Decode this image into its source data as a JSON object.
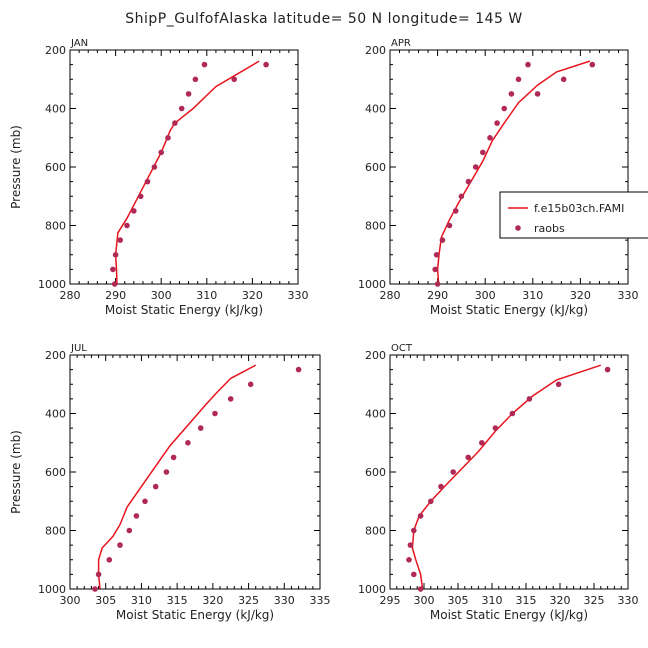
{
  "title": "ShipP_GulfofAlaska  latitude= 50 N longitude= 145 W",
  "colors": {
    "model": "#e8141e",
    "obs": "#b02a55",
    "axis": "#000000"
  },
  "legend": {
    "model": "f.e15b03ch.FAMI",
    "obs": "raobs"
  },
  "chart_data": [
    {
      "type": "line",
      "panel": "JAN",
      "xlabel": "Moist Static Energy (kJ/kg)",
      "ylabel": "Pressure (mb)",
      "xlim": [
        280,
        330
      ],
      "ylim": [
        1000,
        200
      ],
      "xticks": [
        280,
        290,
        300,
        310,
        320,
        330
      ],
      "yticks": [
        200,
        400,
        600,
        800,
        1000
      ],
      "series": [
        {
          "name": "f.e15b03ch.FAMI",
          "kind": "line",
          "x": [
            290.3,
            290.2,
            290.0,
            290.5,
            292.5,
            295.0,
            297.5,
            300.0,
            302.0,
            303.0,
            307.0,
            312.0,
            321.5
          ],
          "y": [
            1000,
            950,
            900,
            825,
            775,
            700,
            625,
            550,
            475,
            450,
            400,
            325,
            238
          ]
        },
        {
          "name": "raobs",
          "kind": "scatter",
          "x": [
            289.8,
            289.4,
            290.0,
            291.0,
            292.5,
            294.0,
            295.5,
            297.0,
            298.5,
            300.0,
            301.5,
            303.0,
            304.5,
            306.0,
            307.5,
            309.5,
            316.0,
            323.0
          ],
          "y": [
            1000,
            950,
            900,
            850,
            800,
            750,
            700,
            650,
            600,
            550,
            500,
            450,
            400,
            350,
            300,
            250,
            300,
            250
          ]
        }
      ]
    },
    {
      "type": "line",
      "panel": "APR",
      "xlabel": "Moist Static Energy (kJ/kg)",
      "ylabel": "",
      "xlim": [
        280,
        330
      ],
      "ylim": [
        1000,
        200
      ],
      "xticks": [
        280,
        290,
        300,
        310,
        320,
        330
      ],
      "yticks": [
        200,
        400,
        600,
        800,
        1000
      ],
      "series": [
        {
          "name": "f.e15b03ch.FAMI",
          "kind": "line",
          "x": [
            290.2,
            290.0,
            290.3,
            290.8,
            292.5,
            294.5,
            297.0,
            299.5,
            301.5,
            304.0,
            307.0,
            311.0,
            315.0,
            322.0
          ],
          "y": [
            1000,
            950,
            900,
            840,
            780,
            720,
            650,
            580,
            510,
            450,
            380,
            320,
            275,
            238
          ]
        },
        {
          "name": "raobs",
          "kind": "scatter",
          "x": [
            290.0,
            289.5,
            289.8,
            291.0,
            292.5,
            293.8,
            295.0,
            296.5,
            298.0,
            299.5,
            301.0,
            302.5,
            304.0,
            305.5,
            307.0,
            309.0,
            311.0,
            316.5,
            322.5
          ],
          "y": [
            1000,
            950,
            900,
            850,
            800,
            750,
            700,
            650,
            600,
            550,
            500,
            450,
            400,
            350,
            300,
            250,
            350,
            300,
            250
          ]
        }
      ]
    },
    {
      "type": "line",
      "panel": "JUL",
      "xlabel": "Moist Static Energy (kJ/kg)",
      "ylabel": "Pressure (mb)",
      "xlim": [
        300,
        335
      ],
      "ylim": [
        1000,
        200
      ],
      "xticks": [
        300,
        305,
        310,
        315,
        320,
        325,
        330,
        335
      ],
      "yticks": [
        200,
        400,
        600,
        800,
        1000
      ],
      "series": [
        {
          "name": "f.e15b03ch.FAMI",
          "kind": "line",
          "x": [
            304.2,
            304.0,
            304.0,
            304.5,
            306.0,
            307.0,
            308.0,
            310.0,
            312.0,
            314.0,
            316.5,
            319.0,
            320.5,
            322.5,
            326.0
          ],
          "y": [
            1000,
            950,
            900,
            860,
            820,
            780,
            720,
            650,
            580,
            510,
            440,
            370,
            330,
            280,
            235
          ]
        },
        {
          "name": "raobs",
          "kind": "scatter",
          "x": [
            303.5,
            304.0,
            305.5,
            307.0,
            308.3,
            309.3,
            310.5,
            312.0,
            313.5,
            314.5,
            316.5,
            318.3,
            320.3,
            322.5,
            325.3,
            332.0
          ],
          "y": [
            1000,
            950,
            900,
            850,
            800,
            750,
            700,
            650,
            600,
            550,
            500,
            450,
            400,
            350,
            300,
            250
          ]
        }
      ]
    },
    {
      "type": "line",
      "panel": "OCT",
      "xlabel": "Moist Static Energy (kJ/kg)",
      "ylabel": "",
      "xlim": [
        295,
        330
      ],
      "ylim": [
        1000,
        200
      ],
      "xticks": [
        295,
        300,
        305,
        310,
        315,
        320,
        325,
        330
      ],
      "yticks": [
        200,
        400,
        600,
        800,
        1000
      ],
      "series": [
        {
          "name": "f.e15b03ch.FAMI",
          "kind": "line",
          "x": [
            299.8,
            299.5,
            298.8,
            298.3,
            298.5,
            299.3,
            301.0,
            303.0,
            305.5,
            308.0,
            310.5,
            313.0,
            316.0,
            319.5,
            326.0
          ],
          "y": [
            1000,
            950,
            900,
            860,
            800,
            750,
            700,
            650,
            590,
            530,
            460,
            400,
            340,
            285,
            235
          ]
        },
        {
          "name": "raobs",
          "kind": "scatter",
          "x": [
            299.5,
            298.5,
            297.8,
            298.0,
            298.5,
            299.5,
            301.0,
            302.5,
            304.3,
            306.5,
            308.5,
            310.5,
            313.0,
            315.5,
            319.8,
            327.0
          ],
          "y": [
            1000,
            950,
            900,
            850,
            800,
            750,
            700,
            650,
            600,
            550,
            500,
            450,
            400,
            350,
            300,
            250
          ]
        }
      ]
    }
  ]
}
